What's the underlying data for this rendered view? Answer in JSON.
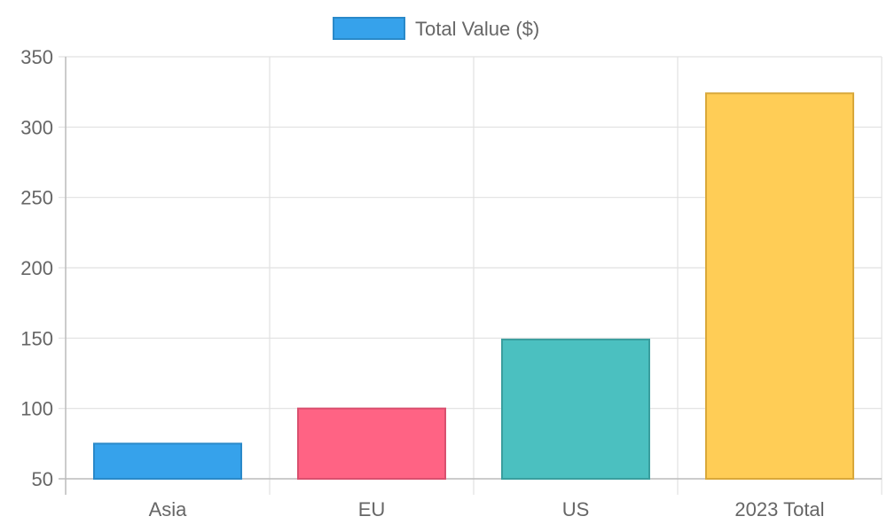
{
  "chart_data": {
    "type": "bar",
    "categories": [
      "Asia",
      "EU",
      "US",
      "2023 Total"
    ],
    "series": [
      {
        "name": "Total Value ($)",
        "values": [
          75,
          100,
          149,
          324
        ]
      }
    ],
    "ylim": [
      50,
      350
    ],
    "yticks": [
      50,
      100,
      150,
      200,
      250,
      300,
      350
    ],
    "grid": true,
    "legend": "top-center",
    "bar_colors": [
      "#36a2eb",
      "#ff6384",
      "#4bc0c0",
      "#ffcd56"
    ],
    "bar_border_colors": [
      "#2a89c9",
      "#d9506f",
      "#3a9e9e",
      "#d9a83a"
    ]
  }
}
